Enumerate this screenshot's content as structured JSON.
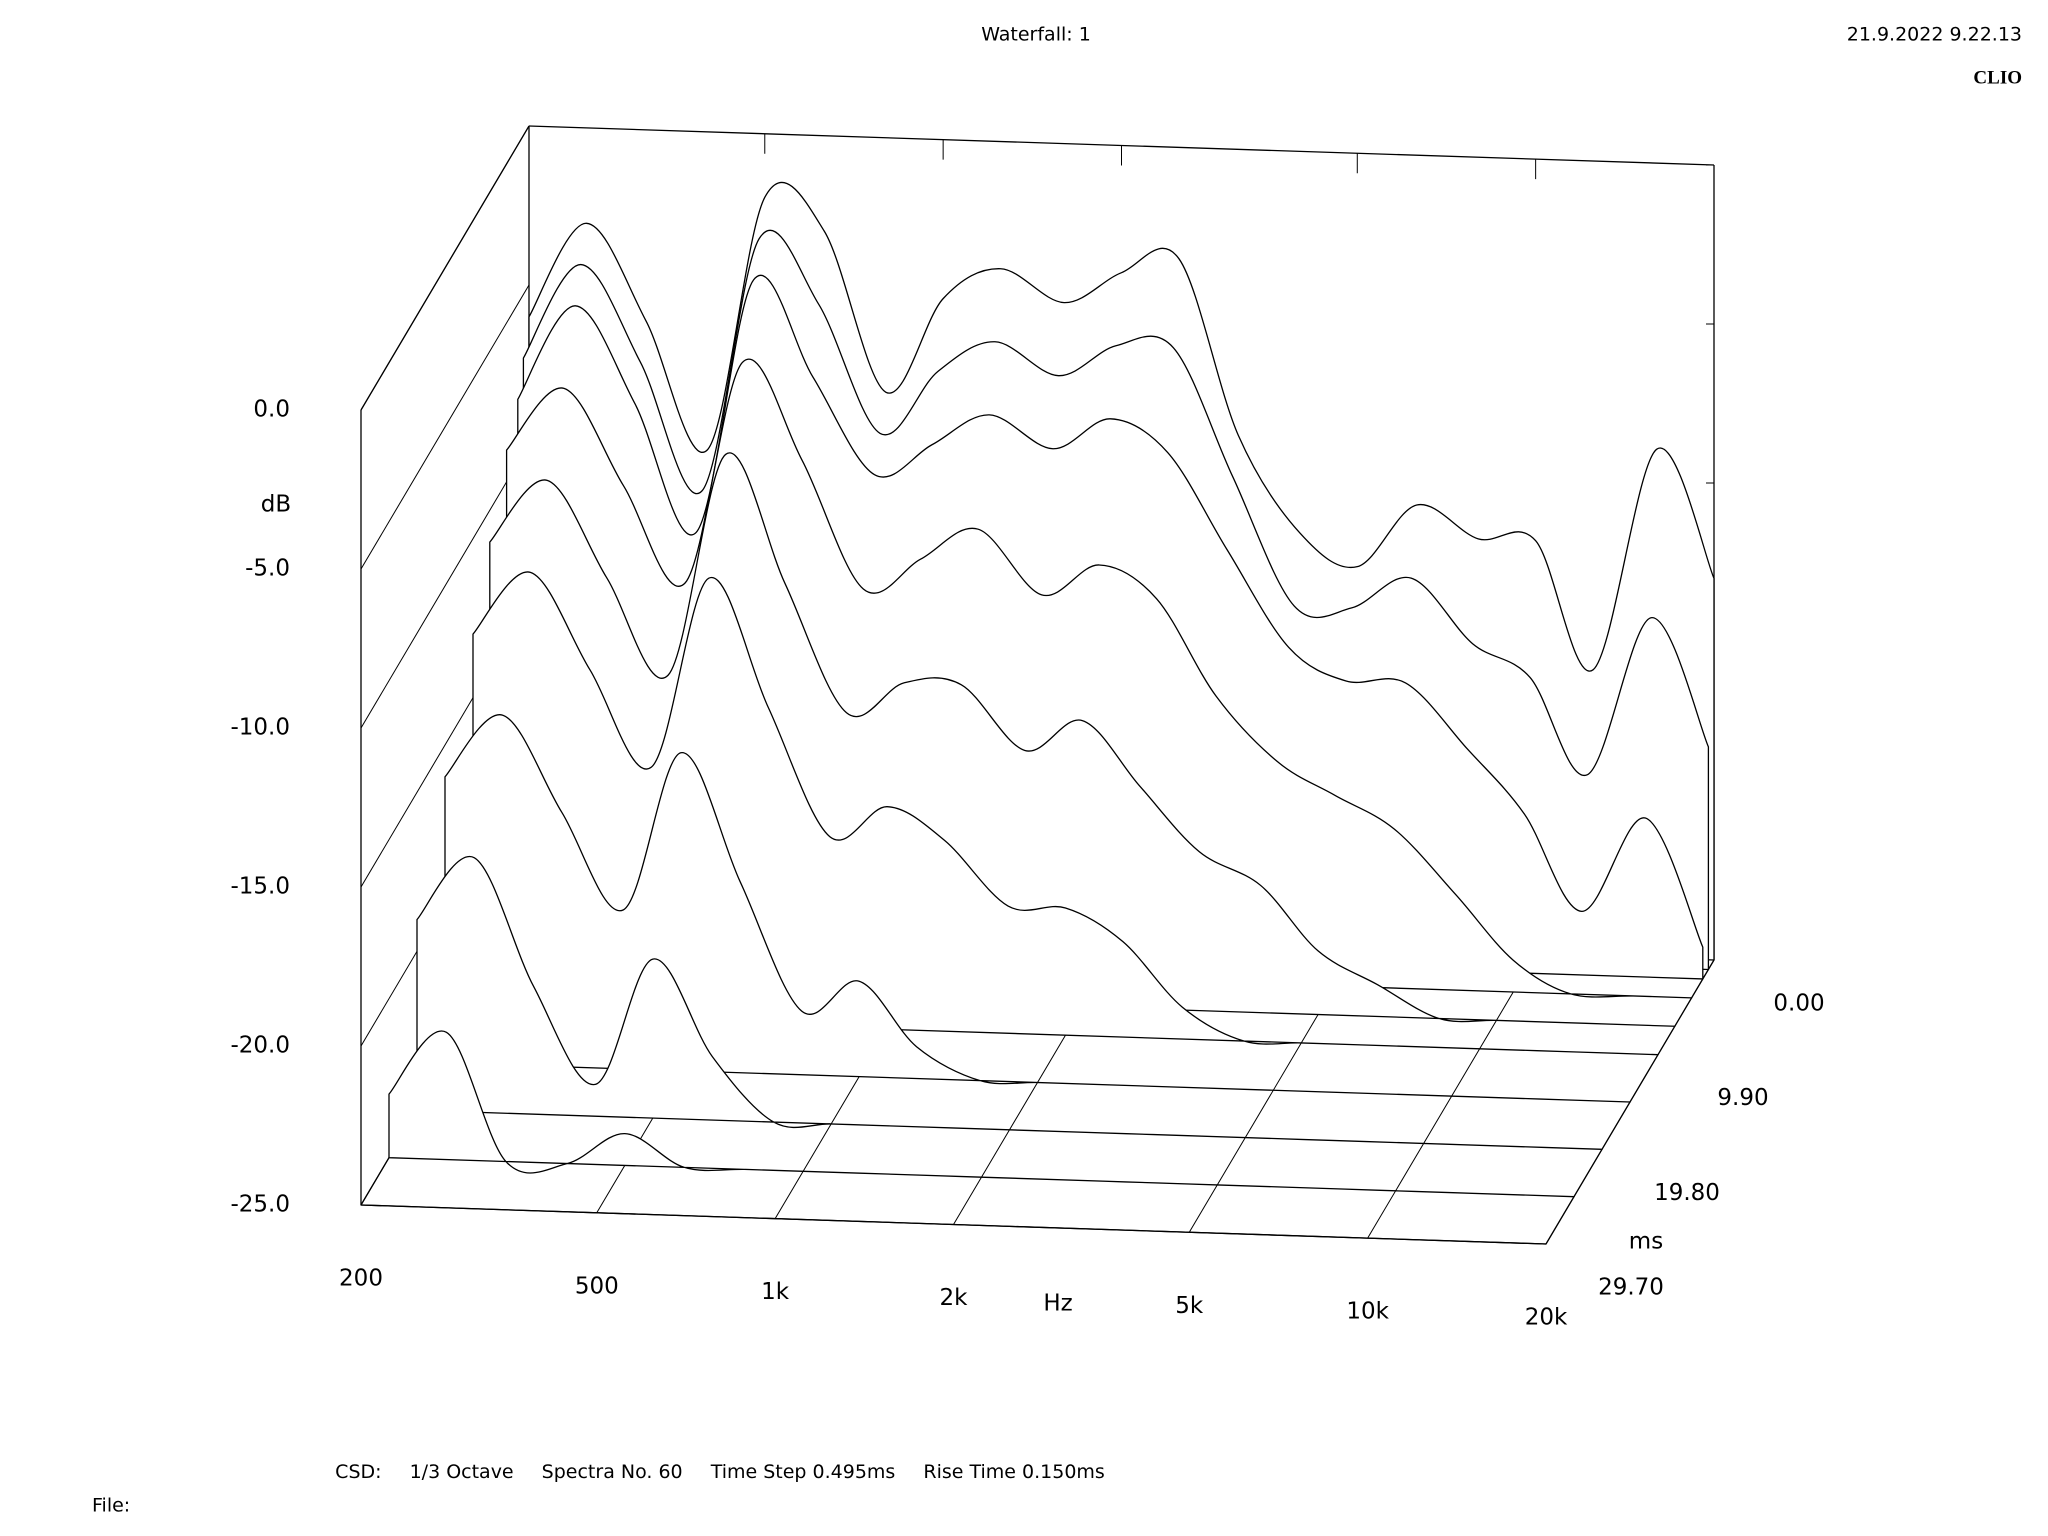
{
  "header": {
    "title": "Waterfall: 1",
    "timestamp": "21.9.2022 9.22.13",
    "brand": "CLIO"
  },
  "chart_data": {
    "type": "waterfall",
    "color": "#000000",
    "x": [
      200,
      250,
      315,
      400,
      500,
      630,
      800,
      1000,
      1250,
      1600,
      2000,
      2500,
      3150,
      4000,
      5000,
      6300,
      8000,
      10000,
      12500,
      16000,
      20000
    ],
    "xlim": [
      200,
      20000
    ],
    "log_x": true,
    "xticks": [
      200,
      500,
      {
        "value": 1000,
        "label": "1k"
      },
      {
        "value": 2000,
        "label": "2k"
      },
      {
        "value": 5000,
        "label": "5k"
      },
      {
        "value": 10000,
        "label": "10k"
      },
      {
        "value": 20000,
        "label": "20k"
      }
    ],
    "x_label": "Hz",
    "ylim": [
      -25,
      0
    ],
    "yticks": [
      {
        "value": 0,
        "label": "0.0"
      },
      {
        "value": -5,
        "label": "-5.0"
      },
      {
        "value": -10,
        "label": "-10.0"
      },
      {
        "value": -15,
        "label": "-15.0"
      },
      {
        "value": -20,
        "label": "-20.0"
      },
      {
        "value": -25,
        "label": "-25.0"
      }
    ],
    "y_label": "dB",
    "zlim": [
      0,
      29.7
    ],
    "zticks": [
      {
        "value": 0,
        "label": "0.00"
      },
      {
        "value": 9.9,
        "label": "9.90"
      },
      {
        "value": 19.8,
        "label": "19.80"
      },
      {
        "value": 29.7,
        "label": "29.70"
      }
    ],
    "z_label": "ms",
    "series": [
      {
        "time": 0,
        "values": [
          -6,
          -3,
          -6,
          -10,
          -2,
          -3,
          -8,
          -5,
          -4,
          -5,
          -4,
          -3.5,
          -9,
          -12,
          -13,
          -11,
          -12,
          -12,
          -16,
          -9,
          -13
        ]
      },
      {
        "time": 0.99,
        "values": [
          -7,
          -4,
          -7,
          -11,
          -3,
          -5,
          -9,
          -7,
          -6,
          -7,
          -6,
          -6,
          -10,
          -14,
          -14,
          -13,
          -15,
          -16,
          -19,
          -14,
          -18
        ]
      },
      {
        "time": 1.98,
        "values": [
          -8,
          -5,
          -8,
          -12,
          -4,
          -7,
          -10,
          -9,
          -8,
          -9,
          -8,
          -9,
          -12,
          -15,
          -16,
          -16,
          -18,
          -20,
          -23,
          -20,
          -24
        ]
      },
      {
        "time": 3.96,
        "values": [
          -9,
          -7,
          -10,
          -13,
          -6,
          -9,
          -13,
          -12,
          -11,
          -13,
          -12,
          -13,
          -16,
          -18,
          -19,
          -20,
          -22,
          -24,
          -25,
          -25,
          -25
        ]
      },
      {
        "time": 6.93,
        "values": [
          -11,
          -9,
          -12,
          -15,
          -8,
          -12,
          -16,
          -15,
          -15,
          -17,
          -16,
          -18,
          -20,
          -21,
          -23,
          -24,
          -25,
          -25,
          -25,
          -25,
          -25
        ]
      },
      {
        "time": 9.9,
        "values": [
          -13,
          -11,
          -14,
          -17,
          -11,
          -15,
          -19,
          -18,
          -19,
          -21,
          -21,
          -22,
          -24,
          -25,
          -25,
          -25,
          -25,
          -25,
          -25,
          -25,
          -25
        ]
      },
      {
        "time": 14.85,
        "values": [
          -16,
          -14,
          -17,
          -20,
          -15,
          -19,
          -23,
          -22,
          -24,
          -25,
          -25,
          -25,
          -25,
          -25,
          -25,
          -25,
          -25,
          -25,
          -25,
          -25,
          -25
        ]
      },
      {
        "time": 19.8,
        "values": [
          -19,
          -17,
          -21,
          -24,
          -20,
          -23,
          -25,
          -25,
          -25,
          -25,
          -25,
          -25,
          -25,
          -25,
          -25,
          -25,
          -25,
          -25,
          -25,
          -25,
          -25
        ]
      },
      {
        "time": 24.75,
        "values": [
          -23,
          -21,
          -25,
          -25,
          -24,
          -25,
          -25,
          -25,
          -25,
          -25,
          -25,
          -25,
          -25,
          -25,
          -25,
          -25,
          -25,
          -25,
          -25,
          -25,
          -25
        ]
      },
      {
        "time": 29.7,
        "values": [
          -25,
          -25,
          -25,
          -25,
          -25,
          -25,
          -25,
          -25,
          -25,
          -25,
          -25,
          -25,
          -25,
          -25,
          -25,
          -25,
          -25,
          -25,
          -25,
          -25,
          -25
        ]
      }
    ]
  },
  "footer": {
    "items": [
      "CSD:",
      "1/3 Octave",
      "Spectra No. 60",
      "Time Step 0.495ms",
      "Rise Time 0.150ms"
    ],
    "file_label": "File:"
  }
}
